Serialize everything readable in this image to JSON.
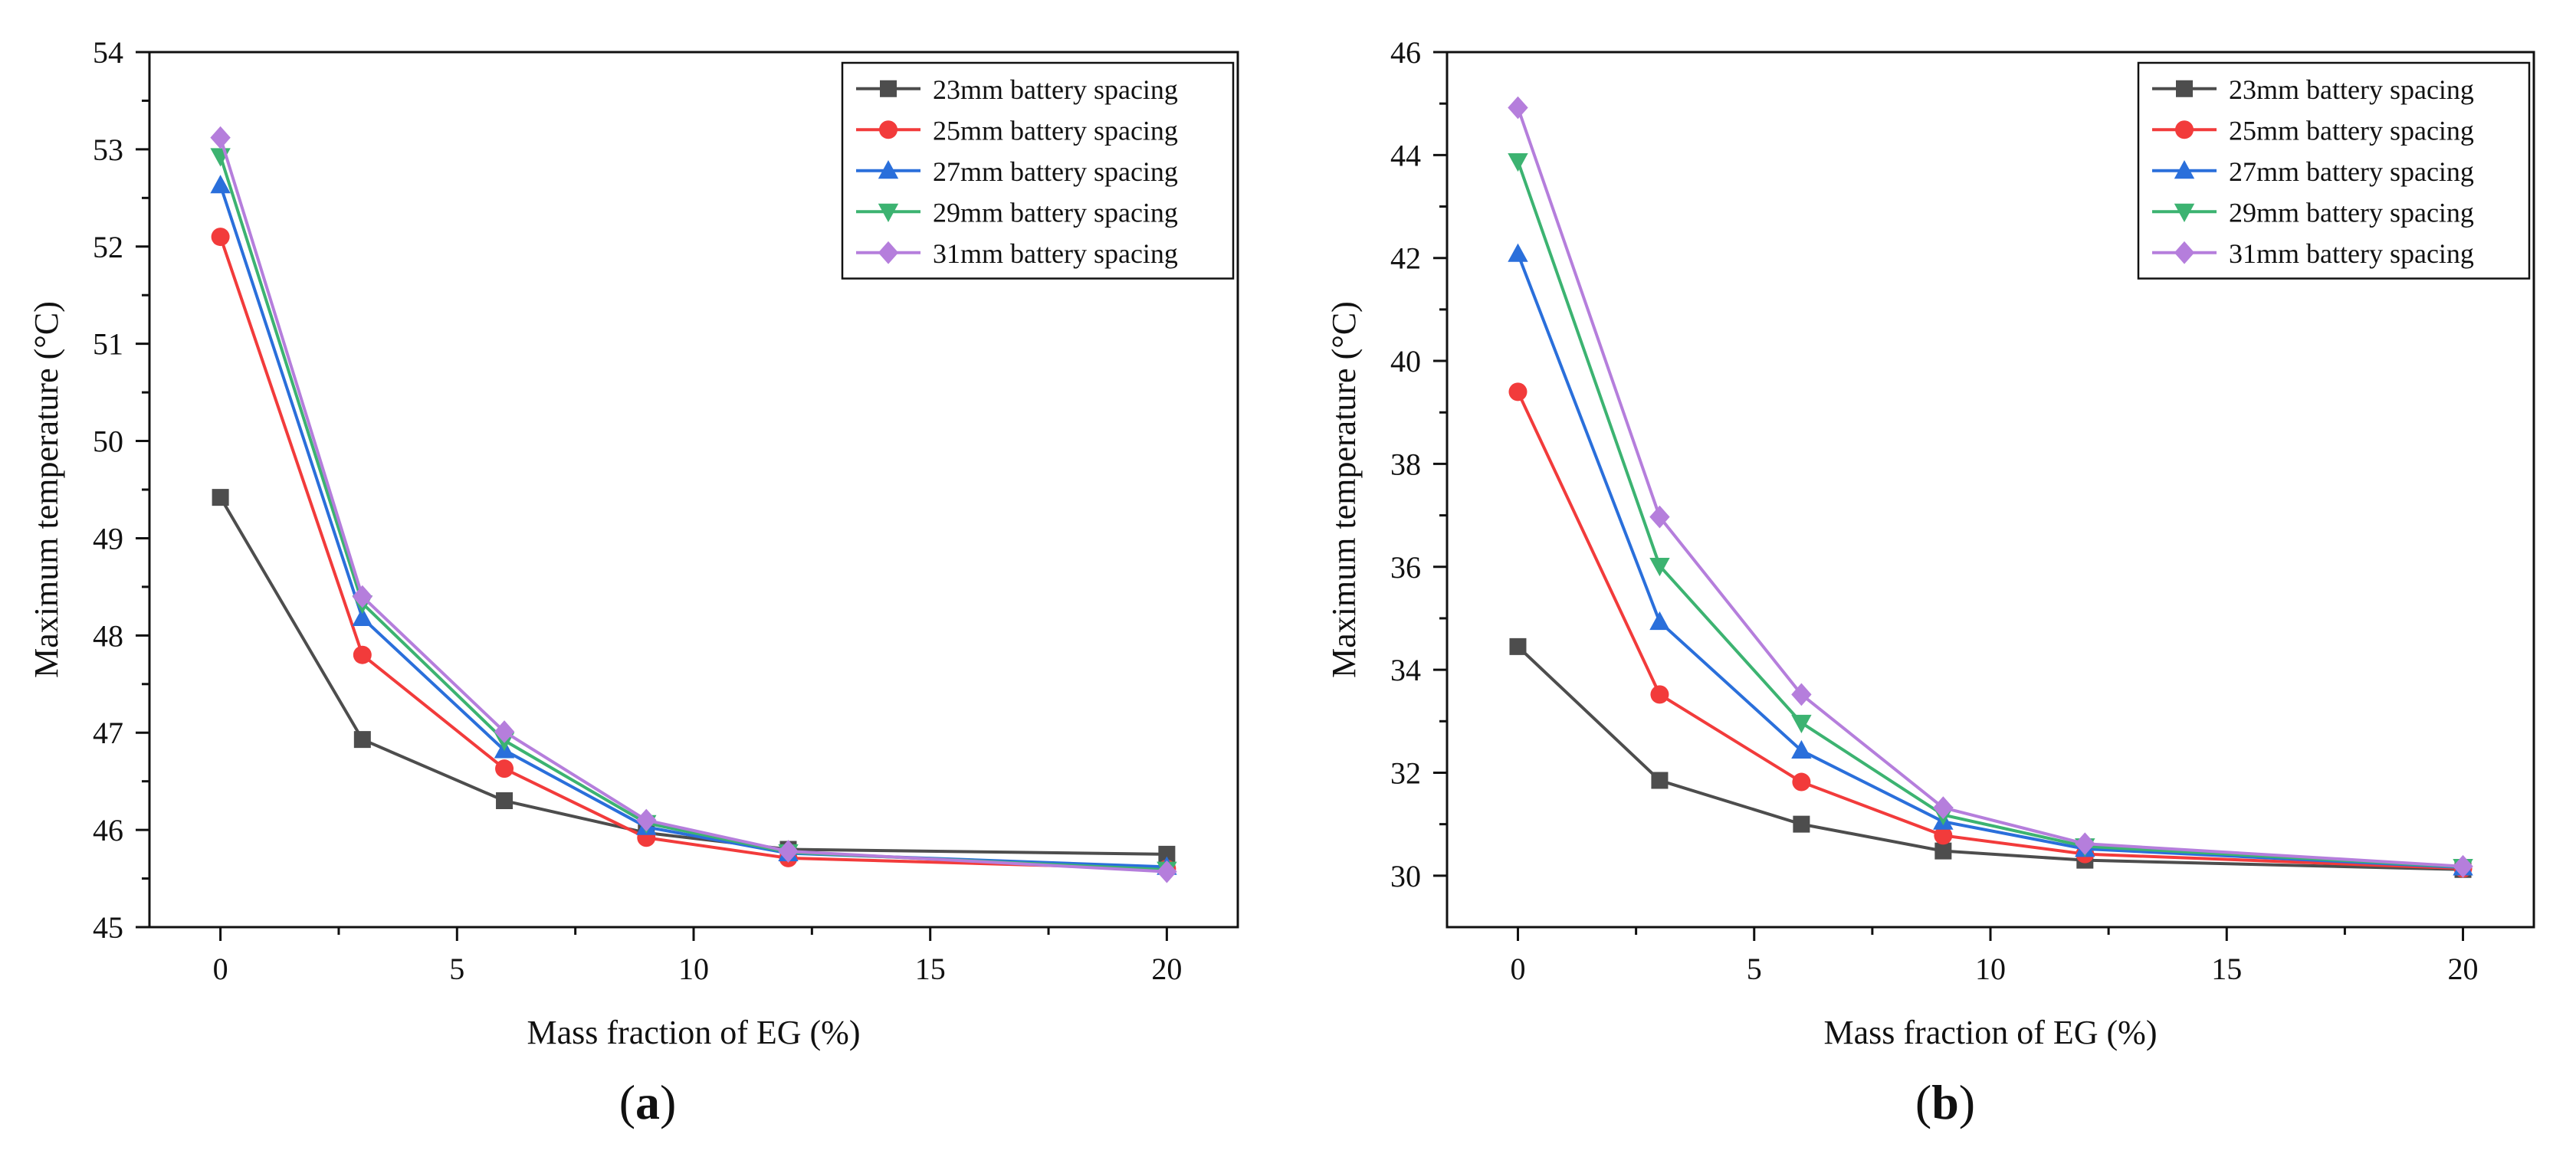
{
  "chart_data": [
    {
      "type": "line",
      "panel_label": "a",
      "xlabel": "Mass fraction of EG (%)",
      "ylabel": "Maximum temperature (°C)",
      "xlim": [
        -1.5,
        21.5
      ],
      "ylim": [
        45,
        54
      ],
      "x_ticks": [
        0,
        5,
        10,
        15,
        20
      ],
      "y_ticks": [
        45,
        46,
        47,
        48,
        49,
        50,
        51,
        52,
        53,
        54
      ],
      "legend_position": "top-right",
      "x": [
        0,
        3,
        6,
        9,
        12,
        20
      ],
      "series": [
        {
          "name": "23mm battery spacing",
          "color": "#4d4d4d",
          "marker": "square",
          "values": [
            49.42,
            46.93,
            46.3,
            45.97,
            45.8,
            45.75
          ]
        },
        {
          "name": "25mm battery spacing",
          "color": "#f23b3b",
          "marker": "circle",
          "values": [
            52.1,
            47.8,
            46.63,
            45.92,
            45.71,
            45.6
          ]
        },
        {
          "name": "27mm battery spacing",
          "color": "#2a6fdb",
          "marker": "triangle-up",
          "values": [
            52.63,
            48.18,
            46.82,
            46.03,
            45.76,
            45.62
          ]
        },
        {
          "name": "29mm battery spacing",
          "color": "#3cb371",
          "marker": "triangle-down",
          "values": [
            52.93,
            48.33,
            46.92,
            46.07,
            45.77,
            45.59
          ]
        },
        {
          "name": "31mm battery spacing",
          "color": "#b57edc",
          "marker": "diamond",
          "values": [
            53.12,
            48.4,
            47.01,
            46.1,
            45.78,
            45.57
          ]
        }
      ]
    },
    {
      "type": "line",
      "panel_label": "b",
      "xlabel": "Mass fraction of EG (%)",
      "ylabel": "Maximum temperature (°C)",
      "xlim": [
        -1.5,
        21.5
      ],
      "ylim": [
        29,
        46
      ],
      "x_ticks": [
        0,
        5,
        10,
        15,
        20
      ],
      "y_ticks": [
        30,
        32,
        34,
        36,
        38,
        40,
        42,
        44,
        46
      ],
      "legend_position": "top-right",
      "x": [
        0,
        3,
        6,
        9,
        12,
        20
      ],
      "series": [
        {
          "name": "23mm battery spacing",
          "color": "#4d4d4d",
          "marker": "square",
          "values": [
            34.45,
            31.85,
            31.0,
            30.48,
            30.3,
            30.12
          ]
        },
        {
          "name": "25mm battery spacing",
          "color": "#f23b3b",
          "marker": "circle",
          "values": [
            39.4,
            33.52,
            31.82,
            30.78,
            30.42,
            30.14
          ]
        },
        {
          "name": "27mm battery spacing",
          "color": "#2a6fdb",
          "marker": "triangle-up",
          "values": [
            42.08,
            34.93,
            32.43,
            31.05,
            30.52,
            30.16
          ]
        },
        {
          "name": "29mm battery spacing",
          "color": "#3cb371",
          "marker": "triangle-down",
          "values": [
            43.88,
            36.02,
            32.97,
            31.18,
            30.57,
            30.17
          ]
        },
        {
          "name": "31mm battery spacing",
          "color": "#b57edc",
          "marker": "diamond",
          "values": [
            44.92,
            36.97,
            33.52,
            31.32,
            30.62,
            30.18
          ]
        }
      ]
    }
  ]
}
